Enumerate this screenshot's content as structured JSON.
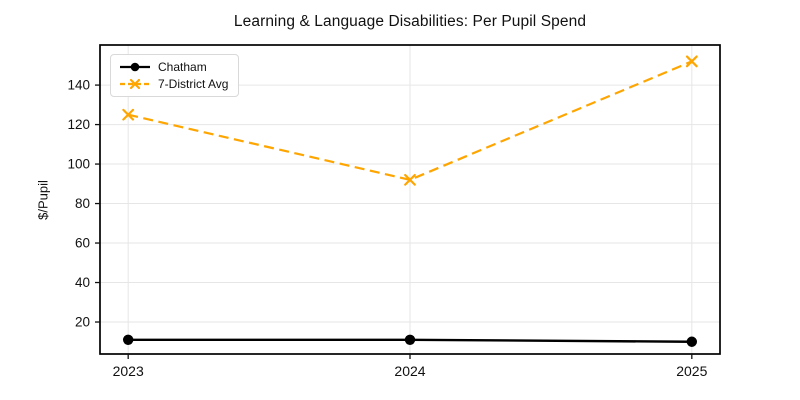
{
  "chart_data": {
    "type": "line",
    "title": "Learning & Language Disabilities: Per Pupil Spend",
    "xlabel": "",
    "ylabel": "$/Pupil",
    "x": [
      2023,
      2024,
      2025
    ],
    "xtick_labels": [
      "2023",
      "2024",
      "2025"
    ],
    "yticks": [
      20,
      40,
      60,
      80,
      100,
      120,
      140
    ],
    "xlim": [
      2022.9,
      2025.1
    ],
    "ylim": [
      3.8,
      160.3
    ],
    "grid": true,
    "legend_position": "upper left",
    "series": [
      {
        "name": "Chatham",
        "values": [
          11,
          11,
          10
        ],
        "color": "#000000",
        "line_style": "solid",
        "marker": "circle"
      },
      {
        "name": "7-District Avg",
        "values": [
          125,
          92,
          152
        ],
        "color": "#FFA500",
        "line_style": "dashed",
        "marker": "x"
      }
    ]
  },
  "style": {
    "grid_color": "#e6e6e6",
    "spine_color": "#000000",
    "tick_color": "#111111",
    "background": "#ffffff",
    "legend_border": "#d9d9d9"
  }
}
